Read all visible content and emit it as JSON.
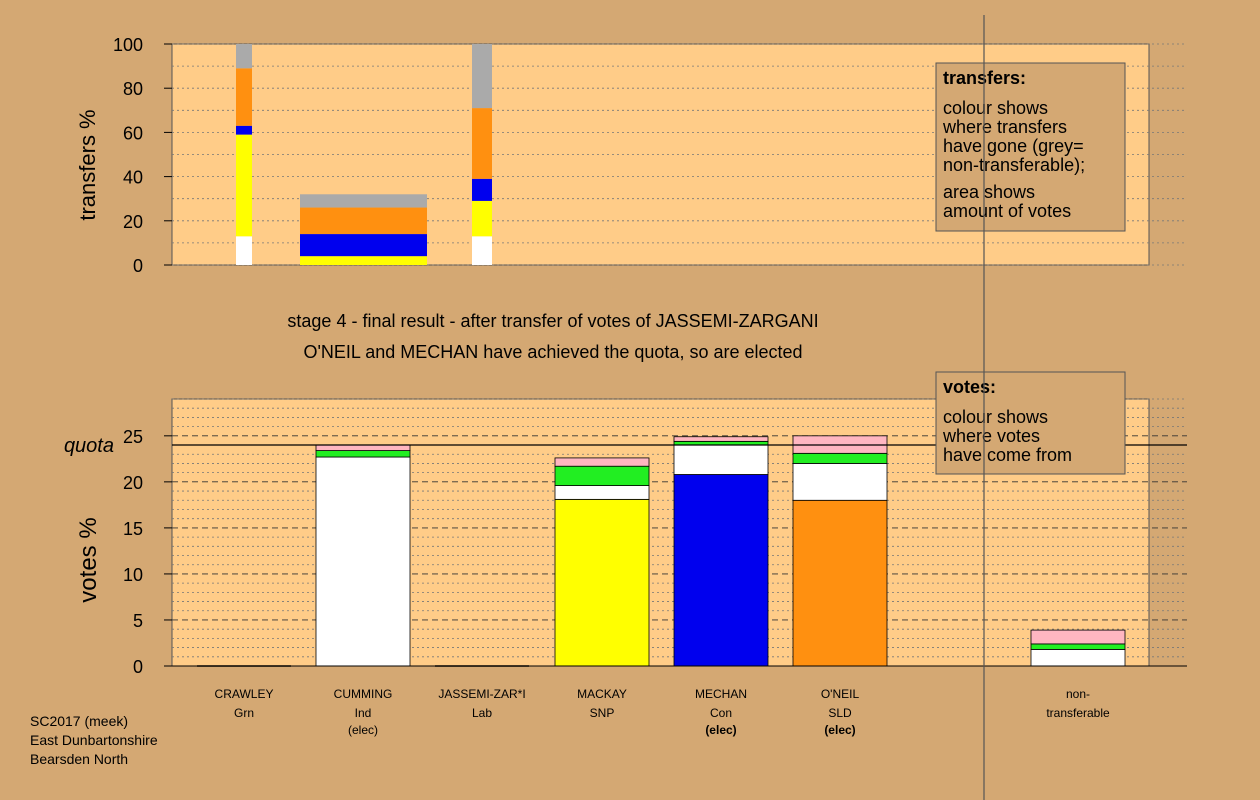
{
  "stage_line": "stage 4 - final result - after transfer of votes of JASSEMI-ZARGANI",
  "result_line": "O'NEIL and MECHAN have achieved the quota, so are elected",
  "colors": {
    "page_bg": "#d4a873",
    "plot_bg": "#ffcc88",
    "yellow": "#ffff00",
    "blue": "#0000ee",
    "orange": "#ff9010",
    "white": "#ffffff",
    "green": "#22ee22",
    "pink": "#ffb6c1",
    "grey": "#aaaaaa"
  },
  "footer": {
    "line1": "SC2017 (meek)",
    "line2": "East Dunbartonshire",
    "line3": "Bearsden North"
  },
  "chart_data": [
    {
      "type": "bar",
      "stacked": true,
      "title": "transfers",
      "ylabel": "transfers %",
      "ylim": [
        0,
        100
      ],
      "yticks": [
        0,
        20,
        40,
        60,
        80,
        100
      ],
      "legend": {
        "placement": "top-right",
        "title": "transfers:",
        "lines": [
          "colour shows",
          "where transfers",
          "have gone (grey=",
          "non-transferable);",
          "area shows",
          "amount of votes"
        ]
      },
      "bars": [
        {
          "from": "CRAWLEY",
          "width": "narrow",
          "segments": [
            {
              "color": "white",
              "from": 0,
              "to": 13
            },
            {
              "color": "yellow",
              "from": 13,
              "to": 59
            },
            {
              "color": "blue",
              "from": 59,
              "to": 63
            },
            {
              "color": "orange",
              "from": 63,
              "to": 89
            },
            {
              "color": "grey",
              "from": 89,
              "to": 100
            }
          ]
        },
        {
          "from": "CUMMING",
          "width": "wide",
          "segments": [
            {
              "color": "yellow",
              "from": 0,
              "to": 4
            },
            {
              "color": "blue",
              "from": 4,
              "to": 14
            },
            {
              "color": "orange",
              "from": 14,
              "to": 26
            },
            {
              "color": "grey",
              "from": 26,
              "to": 32
            }
          ]
        },
        {
          "from": "JASSEMI-ZARGANI",
          "width": "narrow",
          "segments": [
            {
              "color": "white",
              "from": 0,
              "to": 13
            },
            {
              "color": "yellow",
              "from": 13,
              "to": 29
            },
            {
              "color": "blue",
              "from": 29,
              "to": 39
            },
            {
              "color": "orange",
              "from": 39,
              "to": 71
            },
            {
              "color": "grey",
              "from": 71,
              "to": 100
            }
          ]
        }
      ]
    },
    {
      "type": "bar",
      "stacked": true,
      "title": "votes",
      "ylabel": "votes %",
      "ylim": [
        0,
        29
      ],
      "yticks": [
        0,
        5,
        10,
        15,
        20,
        25
      ],
      "quota": 24,
      "quota_label": "quota",
      "legend": {
        "placement": "top-right",
        "title": "votes:",
        "lines": [
          "colour shows",
          "where votes",
          "have come from"
        ]
      },
      "candidates": [
        {
          "name": "CRAWLEY",
          "party": "Grn",
          "status": "",
          "segments": []
        },
        {
          "name": "CUMMING",
          "party": "Ind",
          "status": "(elec)",
          "segments": [
            {
              "color": "white",
              "value": 22.7
            },
            {
              "color": "green",
              "value": 0.7
            },
            {
              "color": "pink",
              "value": 0.6
            }
          ]
        },
        {
          "name": "JASSEMI-ZAR*I",
          "party": "Lab",
          "status": "",
          "segments": []
        },
        {
          "name": "MACKAY",
          "party": "SNP",
          "status": "",
          "segments": [
            {
              "color": "yellow",
              "value": 18.1
            },
            {
              "color": "white",
              "value": 1.5
            },
            {
              "color": "green",
              "value": 2.1
            },
            {
              "color": "pink",
              "value": 0.9
            }
          ]
        },
        {
          "name": "MECHAN",
          "party": "Con",
          "status": "(elec)",
          "segments": [
            {
              "color": "blue",
              "value": 20.8
            },
            {
              "color": "white",
              "value": 3.2
            },
            {
              "color": "green",
              "value": 0.4
            },
            {
              "color": "pink",
              "value": 0.5
            }
          ]
        },
        {
          "name": "O'NEIL",
          "party": "SLD",
          "status": "(elec)",
          "segments": [
            {
              "color": "orange",
              "value": 18.0
            },
            {
              "color": "white",
              "value": 4.0
            },
            {
              "color": "green",
              "value": 1.1
            },
            {
              "color": "pink",
              "value": 1.9
            }
          ]
        }
      ],
      "non_transferable": {
        "label_line1": "non-",
        "label_line2": "transferable",
        "segments": [
          {
            "color": "white",
            "value": 1.8
          },
          {
            "color": "green",
            "value": 0.6
          },
          {
            "color": "pink",
            "value": 1.5
          }
        ]
      }
    }
  ]
}
